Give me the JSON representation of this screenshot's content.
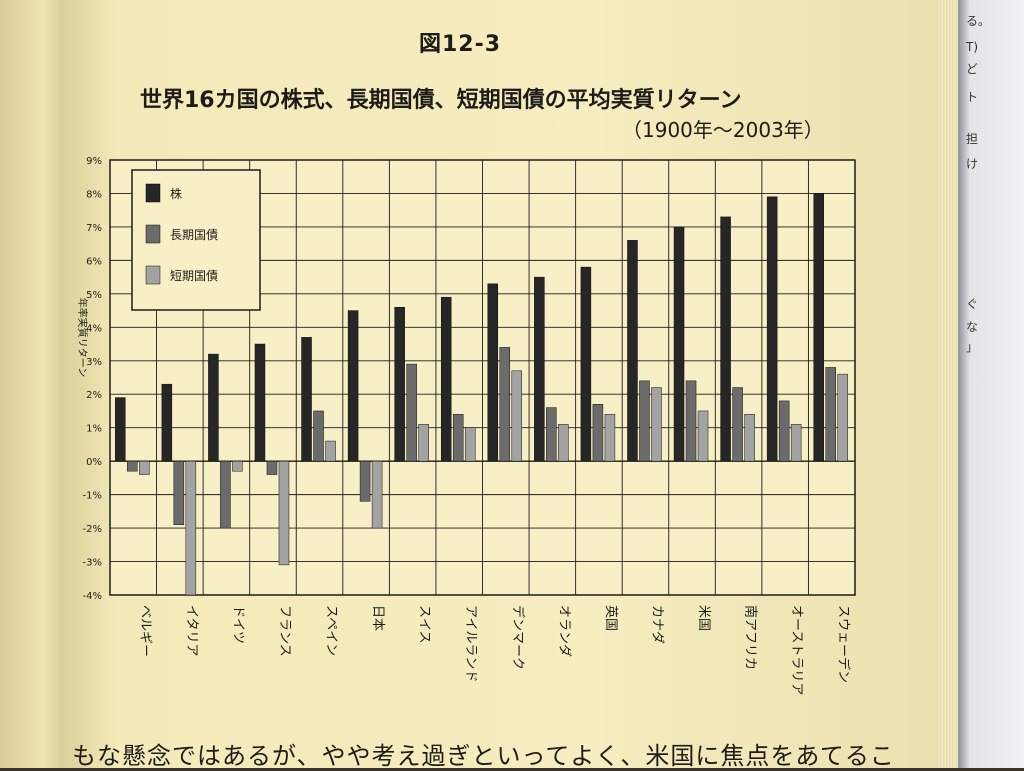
{
  "figure": {
    "number": "図12-3",
    "title": "世界16カ国の株式、長期国債、短期国債の平均実質リターン",
    "subtitle": "（1900年～2003年）"
  },
  "body_text": "もな懸念ではあるが、やや考え過ぎといってよく、米国に焦点をあてるこ",
  "right_page_fragments": [
    "る。",
    "T)",
    "ど",
    "ト",
    "担",
    "け",
    "ぐ",
    "な",
    "」"
  ],
  "colors": {
    "stock": "#262626",
    "long_bond": "#6b6b6b",
    "short_bill": "#a3a3a3",
    "grid": "#1e1c18"
  },
  "chart_data": {
    "type": "bar",
    "title": "",
    "xlabel": "",
    "ylabel": "年率実質リターン",
    "ylim": [
      -4,
      9
    ],
    "yticks": [
      "9%",
      "8%",
      "7%",
      "6%",
      "5%",
      "4%",
      "3%",
      "2%",
      "1%",
      "0%",
      "-1%",
      "-2%",
      "-3%",
      "-4%"
    ],
    "grid": true,
    "legend_position": "top-left",
    "categories": [
      "ベルギー",
      "イタリア",
      "ドイツ",
      "フランス",
      "スペイン",
      "日本",
      "スイス",
      "アイルランド",
      "デンマーク",
      "オランダ",
      "英国",
      "カナダ",
      "米国",
      "南アフリカ",
      "オーストラリア",
      "スウェーデン"
    ],
    "series": [
      {
        "name": "株",
        "values": [
          1.9,
          2.3,
          3.2,
          3.5,
          3.7,
          4.5,
          4.6,
          4.9,
          5.3,
          5.5,
          5.8,
          6.6,
          7.0,
          7.3,
          7.9,
          8.0
        ]
      },
      {
        "name": "長期国債",
        "values": [
          -0.3,
          -1.9,
          -2.0,
          -0.4,
          1.5,
          -1.2,
          2.9,
          1.4,
          3.4,
          1.6,
          1.7,
          2.4,
          2.4,
          2.2,
          1.8,
          2.8
        ]
      },
      {
        "name": "短期国債",
        "values": [
          -0.4,
          -4.0,
          -0.3,
          -3.1,
          0.6,
          -2.0,
          1.1,
          1.0,
          2.7,
          1.1,
          1.4,
          2.2,
          1.5,
          1.4,
          1.1,
          2.6
        ]
      }
    ]
  }
}
